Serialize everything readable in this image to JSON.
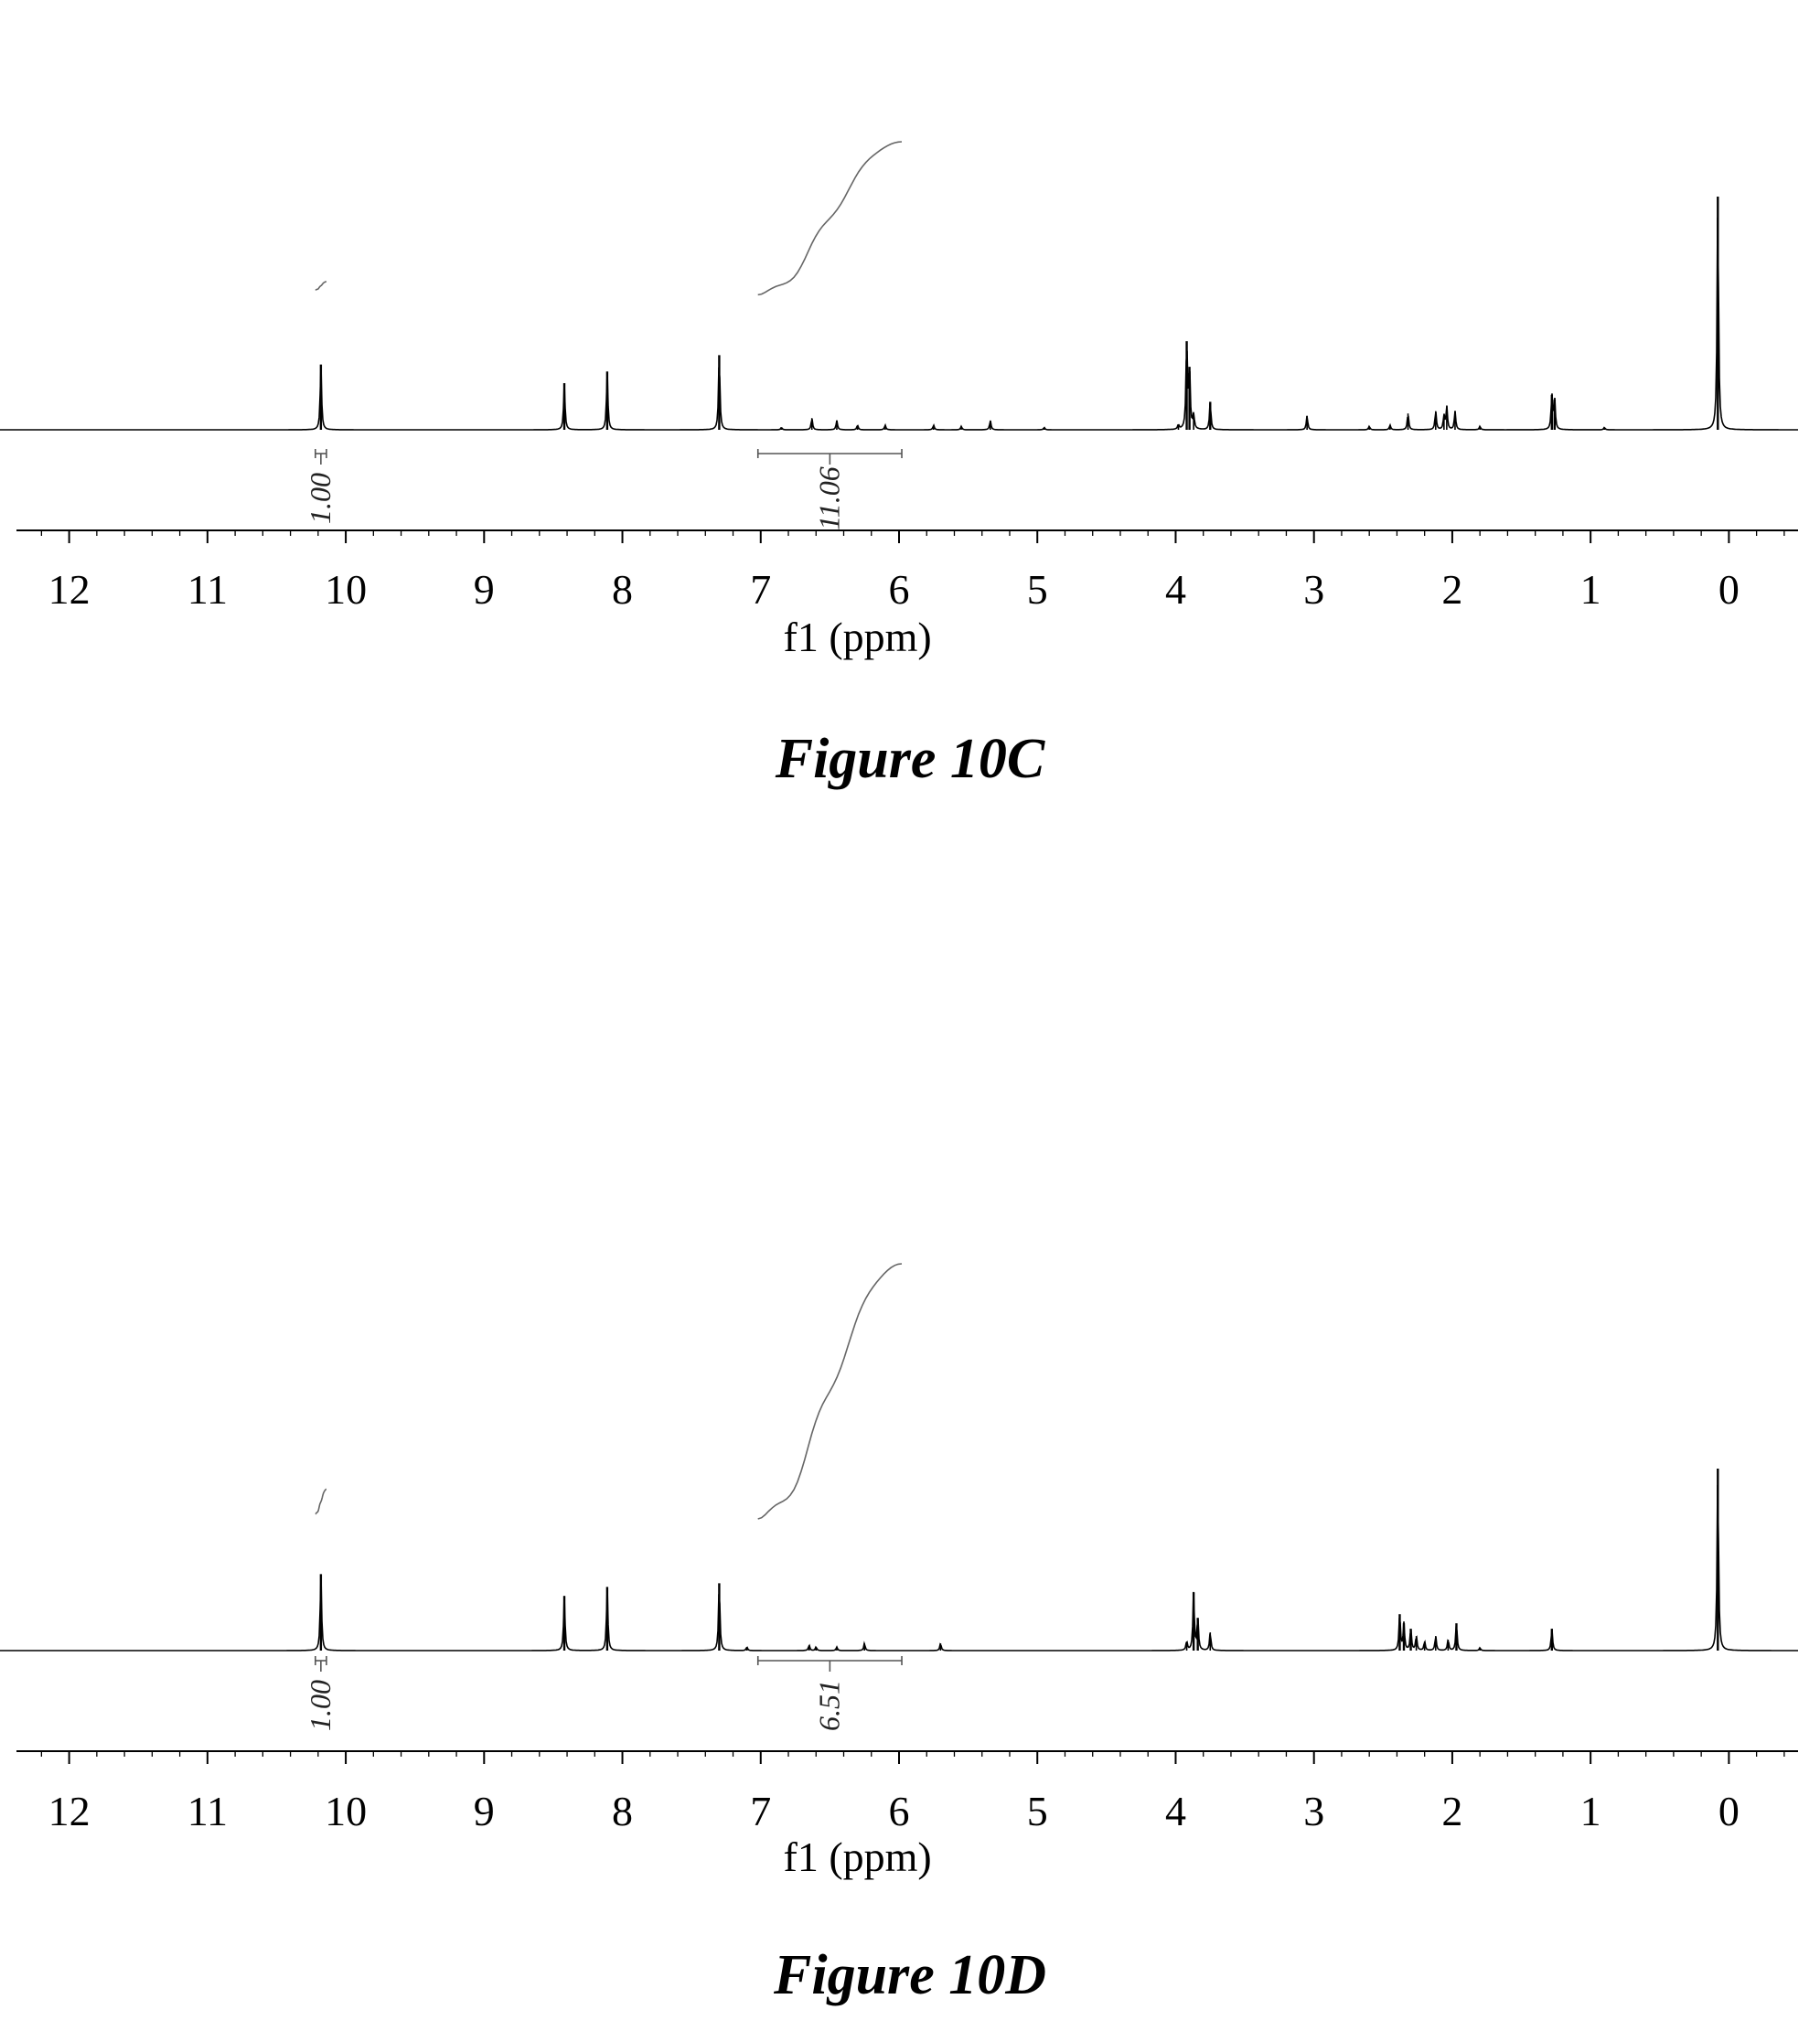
{
  "chart_data": [
    {
      "type": "line",
      "caption": "Figure 10C",
      "xlabel": "f1 (ppm)",
      "xlim": [
        12.5,
        -0.5
      ],
      "x_reversed": true,
      "ticks": [
        12,
        11,
        10,
        9,
        8,
        7,
        6,
        5,
        4,
        3,
        2,
        1,
        0
      ],
      "peaks": [
        {
          "ppm": 10.18,
          "h": 0.28
        },
        {
          "ppm": 8.42,
          "h": 0.2
        },
        {
          "ppm": 8.11,
          "h": 0.25
        },
        {
          "ppm": 7.3,
          "h": 0.32
        },
        {
          "ppm": 6.85,
          "h": 0.01
        },
        {
          "ppm": 6.63,
          "h": 0.05
        },
        {
          "ppm": 6.45,
          "h": 0.04
        },
        {
          "ppm": 6.3,
          "h": 0.02
        },
        {
          "ppm": 6.1,
          "h": 0.02
        },
        {
          "ppm": 5.75,
          "h": 0.02
        },
        {
          "ppm": 5.55,
          "h": 0.015
        },
        {
          "ppm": 5.34,
          "h": 0.04
        },
        {
          "ppm": 4.95,
          "h": 0.01
        },
        {
          "ppm": 3.98,
          "h": 0.02
        },
        {
          "ppm": 3.92,
          "h": 0.38
        },
        {
          "ppm": 3.9,
          "h": 0.27
        },
        {
          "ppm": 3.87,
          "h": 0.06
        },
        {
          "ppm": 3.75,
          "h": 0.12
        },
        {
          "ppm": 3.05,
          "h": 0.06
        },
        {
          "ppm": 2.6,
          "h": 0.015
        },
        {
          "ppm": 2.45,
          "h": 0.02
        },
        {
          "ppm": 2.32,
          "h": 0.07
        },
        {
          "ppm": 2.12,
          "h": 0.08
        },
        {
          "ppm": 2.06,
          "h": 0.06
        },
        {
          "ppm": 2.04,
          "h": 0.1
        },
        {
          "ppm": 1.98,
          "h": 0.08
        },
        {
          "ppm": 1.8,
          "h": 0.015
        },
        {
          "ppm": 1.28,
          "h": 0.15
        },
        {
          "ppm": 1.26,
          "h": 0.13
        },
        {
          "ppm": 0.9,
          "h": 0.01
        },
        {
          "ppm": 0.08,
          "h": 1.0
        }
      ],
      "integrals": [
        {
          "from": 10.22,
          "to": 10.14,
          "value": "1.00",
          "curve_top": 0.9,
          "curve_bottom": 0.85
        },
        {
          "from": 7.02,
          "to": 5.98,
          "value": "11.06",
          "curve_top": 1.75,
          "curve_bottom": 0.82
        }
      ]
    },
    {
      "type": "line",
      "caption": "Figure 10D",
      "xlabel": "f1 (ppm)",
      "xlim": [
        12.5,
        -0.5
      ],
      "x_reversed": true,
      "ticks": [
        12,
        11,
        10,
        9,
        8,
        7,
        6,
        5,
        4,
        3,
        2,
        1,
        0
      ],
      "peaks": [
        {
          "ppm": 10.18,
          "h": 0.42
        },
        {
          "ppm": 8.42,
          "h": 0.3
        },
        {
          "ppm": 8.11,
          "h": 0.35
        },
        {
          "ppm": 7.3,
          "h": 0.37
        },
        {
          "ppm": 7.1,
          "h": 0.02
        },
        {
          "ppm": 6.65,
          "h": 0.03
        },
        {
          "ppm": 6.6,
          "h": 0.02
        },
        {
          "ppm": 6.45,
          "h": 0.02
        },
        {
          "ppm": 6.25,
          "h": 0.04
        },
        {
          "ppm": 5.7,
          "h": 0.04
        },
        {
          "ppm": 3.92,
          "h": 0.05
        },
        {
          "ppm": 3.87,
          "h": 0.32
        },
        {
          "ppm": 3.84,
          "h": 0.18
        },
        {
          "ppm": 3.75,
          "h": 0.1
        },
        {
          "ppm": 2.38,
          "h": 0.2
        },
        {
          "ppm": 2.35,
          "h": 0.15
        },
        {
          "ppm": 2.3,
          "h": 0.12
        },
        {
          "ppm": 2.26,
          "h": 0.08
        },
        {
          "ppm": 2.2,
          "h": 0.05
        },
        {
          "ppm": 2.12,
          "h": 0.08
        },
        {
          "ppm": 2.03,
          "h": 0.06
        },
        {
          "ppm": 1.97,
          "h": 0.15
        },
        {
          "ppm": 1.8,
          "h": 0.015
        },
        {
          "ppm": 1.28,
          "h": 0.12
        },
        {
          "ppm": 0.08,
          "h": 1.0
        }
      ],
      "integrals": [
        {
          "from": 10.22,
          "to": 10.14,
          "value": "1.00",
          "curve_top": 0.98,
          "curve_bottom": 0.83
        },
        {
          "from": 7.02,
          "to": 5.98,
          "value": "6.51",
          "curve_top": 2.35,
          "curve_bottom": 0.8
        }
      ]
    }
  ]
}
